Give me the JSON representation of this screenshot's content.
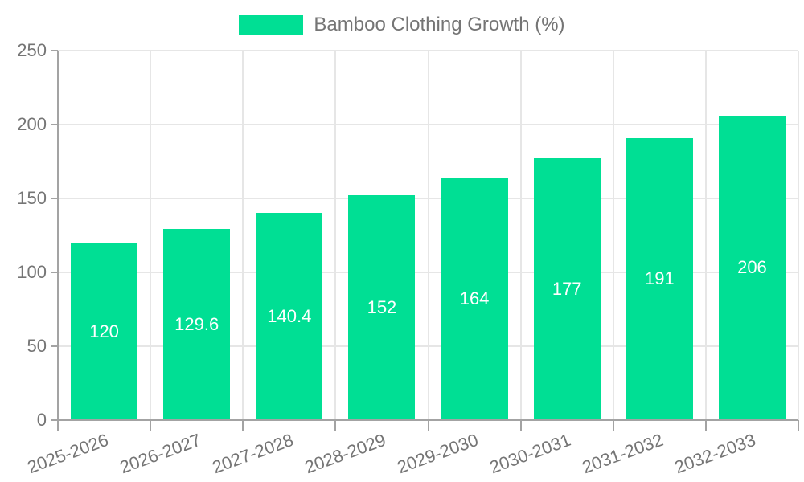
{
  "legend": {
    "label": "Bamboo Clothing Growth (%)"
  },
  "chart_data": {
    "type": "bar",
    "title": "Bamboo Clothing Growth (%)",
    "categories": [
      "2025-2026",
      "2026-2027",
      "2027-2028",
      "2028-2029",
      "2029-2030",
      "2030-2031",
      "2031-2032",
      "2032-2033"
    ],
    "series": [
      {
        "name": "Bamboo Clothing Growth (%)",
        "values": [
          120,
          129.6,
          140.4,
          152,
          164,
          177,
          191,
          206
        ]
      }
    ],
    "data_labels": [
      "120",
      "129.6",
      "140.4",
      "152",
      "164",
      "177",
      "191",
      "206"
    ],
    "y_ticks": [
      0,
      50,
      100,
      150,
      200,
      250
    ],
    "y_tick_labels": [
      "0",
      "50",
      "100",
      "150",
      "200",
      "250"
    ],
    "xlabel": "",
    "ylabel": "",
    "ylim": [
      0,
      250
    ],
    "grid": true,
    "legend_position": "top",
    "bar_color": "#00DF94",
    "text_color": "#757575",
    "grid_color": "#e6e6e6",
    "axis_color": "#a3a3a3",
    "value_label_color": "#ffffff"
  }
}
